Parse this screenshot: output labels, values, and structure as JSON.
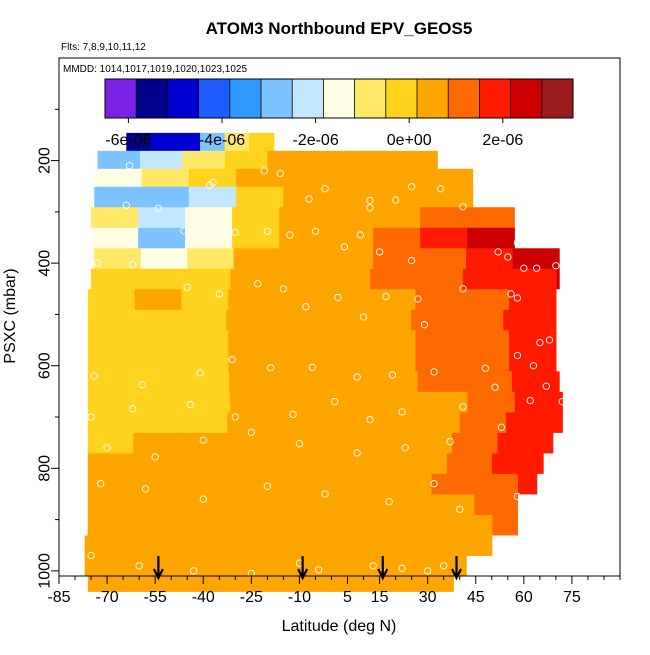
{
  "chart_data": {
    "type": "heatmap",
    "title": "ATOM3 Northbound EPV_GEOS5",
    "annotations": [
      "Flts: 7,8,9,10,11,12",
      "MMDD: 1014,1017,1019,1020,1023,1025"
    ],
    "xlabel": "Latitude (deg N)",
    "ylabel": "PSXC (mbar)",
    "xlim": [
      -85,
      90
    ],
    "ylim": [
      1010,
      0
    ],
    "x_ticks": [
      -85,
      -70,
      -55,
      -40,
      -25,
      -10,
      5,
      15,
      30,
      45,
      60,
      75
    ],
    "x_tick_labels": [
      "-85",
      "-70",
      "-55",
      "-40",
      "-25",
      "-10",
      "5",
      "15",
      "30",
      "45",
      "60",
      "75"
    ],
    "y_ticks": [
      200,
      400,
      600,
      800,
      1000
    ],
    "y_tick_labels": [
      "200",
      "400",
      "600",
      "800",
      "1000"
    ],
    "colorbar": {
      "range": [
        -6.5e-06,
        3.5e-06
      ],
      "ticks": [
        -6e-06,
        -4e-06,
        -2e-06,
        0,
        2e-06
      ],
      "tick_labels": [
        "-6e-06",
        "-4e-06",
        "-2e-06",
        "0e+00",
        "2e-06"
      ],
      "colors": [
        "#7b22e6",
        "#00008b",
        "#0000d0",
        "#1e5cff",
        "#2f9bff",
        "#7cc3ff",
        "#c3e6ff",
        "#ffffe6",
        "#ffe866",
        "#ffd21e",
        "#ffa500",
        "#ff6a00",
        "#ff1a00",
        "#cc0000",
        "#9a1c1c"
      ]
    },
    "profile_markers_lat": [
      -54,
      -9,
      16,
      39
    ],
    "layers": [
      {
        "p": 185,
        "lat": [
          -64,
          -18
        ],
        "v": [
          -5.5e-06,
          -5e-06,
          -4.5e-06,
          -3e-06,
          -1e-06,
          0
        ]
      },
      {
        "p": 220,
        "lat": [
          -73,
          33
        ],
        "v": [
          -2.5e-06,
          -2e-06,
          -1e-06,
          0,
          2e-07,
          3e-07,
          4e-07,
          4e-07
        ]
      },
      {
        "p": 255,
        "lat": [
          -74,
          44
        ],
        "v": [
          -1.5e-06,
          -1e-06,
          -5e-07,
          2e-07,
          4e-07,
          5e-07,
          6e-07,
          6e-07
        ]
      },
      {
        "p": 290,
        "lat": [
          -74,
          44
        ],
        "v": [
          -2.5e-06,
          -3e-06,
          -2e-06,
          -2e-07,
          4e-07,
          5e-07,
          6e-07,
          7e-07
        ]
      },
      {
        "p": 330,
        "lat": [
          -75,
          57
        ],
        "v": [
          -1e-06,
          -2e-06,
          -1.5e-06,
          0,
          5e-07,
          6e-07,
          8e-07,
          1e-06,
          1.2e-06
        ]
      },
      {
        "p": 370,
        "lat": [
          -75,
          57
        ],
        "v": [
          -1.5e-06,
          -2.5e-06,
          -1.5e-06,
          0,
          5e-07,
          7e-07,
          9e-07,
          1.5e-06,
          2.5e-06
        ]
      },
      {
        "p": 410,
        "lat": [
          -74,
          71
        ],
        "v": [
          -8e-07,
          -1.5e-06,
          -1e-06,
          2e-07,
          5e-07,
          7e-07,
          9e-07,
          1.3e-06,
          2e-06,
          2.2e-06
        ]
      },
      {
        "p": 450,
        "lat": [
          -75,
          70
        ],
        "v": [
          -5e-07,
          -5e-07,
          -3e-07,
          2e-07,
          5e-07,
          7e-07,
          9e-07,
          1.2e-06,
          1.6e-06,
          2e-06
        ]
      },
      {
        "p": 490,
        "lat": [
          -76,
          70
        ],
        "v": [
          1e-07,
          2e-07,
          1e-07,
          2e-07,
          4e-07,
          6e-07,
          8e-07,
          1.1e-06,
          1.4e-06,
          1.8e-06
        ]
      },
      {
        "p": 530,
        "lat": [
          -76,
          68
        ],
        "v": [
          1e-07,
          1e-07,
          1e-07,
          2e-07,
          4e-07,
          6e-07,
          8e-07,
          1e-06,
          1.3e-06,
          1.7e-06
        ]
      },
      {
        "p": 570,
        "lat": [
          -76,
          70
        ],
        "v": [
          0,
          1e-07,
          1e-07,
          2e-07,
          4e-07,
          6e-07,
          7e-07,
          1e-06,
          1.4e-06,
          1.9e-06
        ]
      },
      {
        "p": 610,
        "lat": [
          -76,
          70
        ],
        "v": [
          0,
          0,
          1e-07,
          2e-07,
          4e-07,
          5e-07,
          7e-07,
          9e-07,
          1.3e-06,
          1.8e-06
        ]
      },
      {
        "p": 650,
        "lat": [
          -76,
          71
        ],
        "v": [
          0,
          0,
          1e-07,
          2e-07,
          3e-07,
          5e-07,
          7e-07,
          9e-07,
          1.2e-06,
          1.7e-06
        ]
      },
      {
        "p": 690,
        "lat": [
          -76,
          72
        ],
        "v": [
          0,
          0,
          1e-07,
          2e-07,
          3e-07,
          5e-07,
          6e-07,
          8e-07,
          1.3e-06,
          1.8e-06
        ]
      },
      {
        "p": 730,
        "lat": [
          -76,
          69
        ],
        "v": [
          1e-07,
          1e-07,
          1e-07,
          2e-07,
          3e-07,
          5e-07,
          6e-07,
          8e-07,
          1.1e-06,
          1.6e-06
        ]
      },
      {
        "p": 770,
        "lat": [
          -76,
          66
        ],
        "v": [
          1e-07,
          2e-07,
          2e-07,
          3e-07,
          4e-07,
          5e-07,
          6e-07,
          8e-07,
          1.1e-06,
          1.8e-06
        ]
      },
      {
        "p": 810,
        "lat": [
          -76,
          64
        ],
        "v": [
          2e-07,
          2e-07,
          3e-07,
          3e-07,
          4e-07,
          5e-07,
          6e-07,
          8e-07,
          1.2e-06,
          2e-06
        ]
      },
      {
        "p": 850,
        "lat": [
          -76,
          58
        ],
        "v": [
          2e-07,
          3e-07,
          3e-07,
          4e-07,
          5e-07,
          5e-07,
          6e-07,
          7e-07,
          9e-07,
          1.3e-06
        ]
      },
      {
        "p": 890,
        "lat": [
          -76,
          58
        ],
        "v": [
          3e-07,
          3e-07,
          4e-07,
          4e-07,
          5e-07,
          5e-07,
          6e-07,
          7e-07,
          8e-07,
          1e-06
        ]
      },
      {
        "p": 930,
        "lat": [
          -76,
          50
        ],
        "v": [
          3e-07,
          4e-07,
          4e-07,
          5e-07,
          5e-07,
          5e-07,
          6e-07,
          6e-07
        ]
      },
      {
        "p": 970,
        "lat": [
          -77,
          42
        ],
        "v": [
          4e-07,
          4e-07,
          5e-07,
          5e-07,
          5e-07,
          6e-07,
          6e-07
        ]
      },
      {
        "p": 1000,
        "lat": [
          -76,
          38
        ],
        "v": [
          4e-07,
          5e-07,
          5e-07,
          5e-07,
          6e-07,
          6e-07
        ]
      }
    ],
    "sample_points": [
      [
        -63,
        210
      ],
      [
        -37,
        243
      ],
      [
        -21,
        220
      ],
      [
        -16,
        225
      ],
      [
        -74,
        245
      ],
      [
        -38,
        248
      ],
      [
        -64,
        287
      ],
      [
        -54,
        293
      ],
      [
        -7,
        275
      ],
      [
        -2,
        255
      ],
      [
        12,
        278
      ],
      [
        12,
        292
      ],
      [
        20,
        277
      ],
      [
        25,
        251
      ],
      [
        34,
        255
      ],
      [
        41,
        290
      ],
      [
        52,
        378
      ],
      [
        55,
        388
      ],
      [
        58,
        360
      ],
      [
        60,
        410
      ],
      [
        64,
        410
      ],
      [
        70,
        405
      ],
      [
        -73,
        400
      ],
      [
        -62,
        403
      ],
      [
        -46,
        337
      ],
      [
        -30,
        340
      ],
      [
        -20,
        338
      ],
      [
        -13,
        345
      ],
      [
        -5,
        338
      ],
      [
        4,
        368
      ],
      [
        9,
        345
      ],
      [
        15,
        378
      ],
      [
        25,
        395
      ],
      [
        41,
        450
      ],
      [
        56,
        460
      ],
      [
        58,
        468
      ],
      [
        -45,
        447
      ],
      [
        -35,
        460
      ],
      [
        -23,
        440
      ],
      [
        -15,
        450
      ],
      [
        -8,
        485
      ],
      [
        2,
        467
      ],
      [
        10,
        505
      ],
      [
        17,
        465
      ],
      [
        27,
        470
      ],
      [
        29,
        520
      ],
      [
        65,
        555
      ],
      [
        68,
        550
      ],
      [
        58,
        580
      ],
      [
        63,
        600
      ],
      [
        72,
        580
      ],
      [
        -74,
        620
      ],
      [
        -59,
        637
      ],
      [
        -41,
        614
      ],
      [
        -31,
        588
      ],
      [
        -19,
        604
      ],
      [
        -6,
        603
      ],
      [
        8,
        622
      ],
      [
        19,
        618
      ],
      [
        32,
        612
      ],
      [
        48,
        605
      ],
      [
        51,
        642
      ],
      [
        -75,
        700
      ],
      [
        -62,
        684
      ],
      [
        -44,
        676
      ],
      [
        -30,
        700
      ],
      [
        -12,
        695
      ],
      [
        1,
        670
      ],
      [
        12,
        705
      ],
      [
        22,
        690
      ],
      [
        41,
        680
      ],
      [
        62,
        668
      ],
      [
        67,
        640
      ],
      [
        72,
        670
      ],
      [
        -70,
        760
      ],
      [
        -55,
        778
      ],
      [
        -40,
        745
      ],
      [
        -25,
        730
      ],
      [
        -10,
        752
      ],
      [
        8,
        770
      ],
      [
        23,
        760
      ],
      [
        37,
        748
      ],
      [
        53,
        720
      ],
      [
        58,
        855
      ],
      [
        -72,
        830
      ],
      [
        -58,
        840
      ],
      [
        -40,
        860
      ],
      [
        -20,
        835
      ],
      [
        -2,
        850
      ],
      [
        18,
        865
      ],
      [
        32,
        830
      ],
      [
        40,
        880
      ],
      [
        -75,
        970
      ],
      [
        -60,
        990
      ],
      [
        -43,
        1000
      ],
      [
        -25,
        1005
      ],
      [
        -10,
        985
      ],
      [
        -4,
        998
      ],
      [
        13,
        990
      ],
      [
        16,
        1003
      ],
      [
        22,
        995
      ],
      [
        30,
        1000
      ],
      [
        35,
        990
      ]
    ]
  }
}
